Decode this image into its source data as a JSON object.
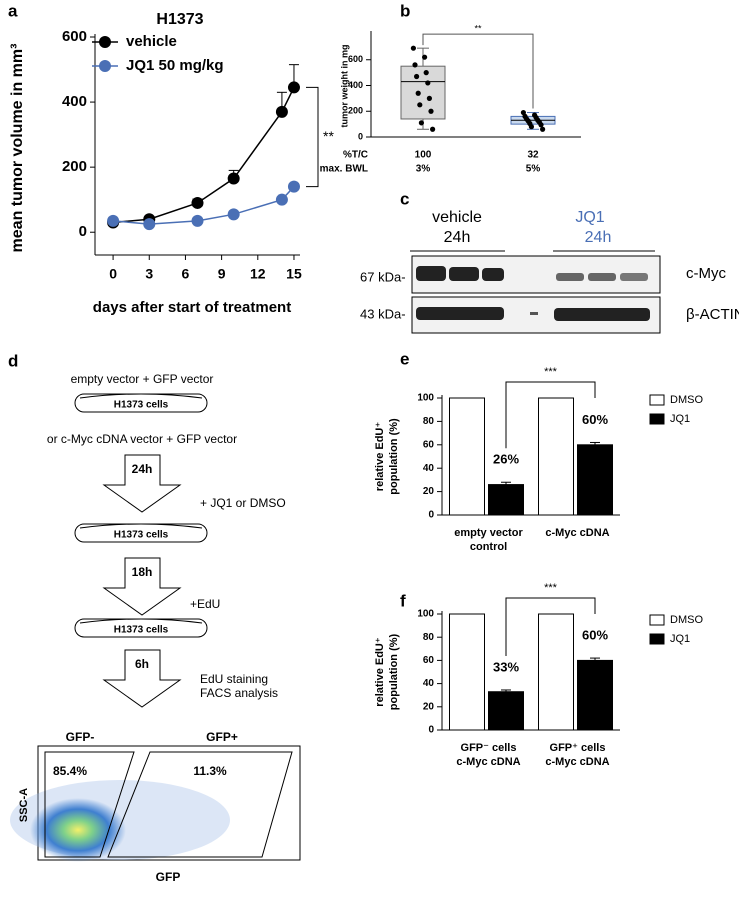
{
  "chart_data": [
    {
      "label": "a",
      "type": "line",
      "title": "H1373",
      "xlabel": "days after start of treatment",
      "ylabel": "mean tumor volume in mm³",
      "xlim": [
        -1.5,
        15.5
      ],
      "xticks": [
        0,
        3,
        6,
        9,
        12,
        15
      ],
      "ylim": [
        -70,
        600
      ],
      "yticks": [
        0,
        200,
        400,
        600
      ],
      "series": [
        {
          "name": "vehicle",
          "color": "#000000",
          "x": [
            0,
            3,
            7,
            10,
            14,
            15
          ],
          "values": [
            30,
            40,
            90,
            165,
            370,
            445
          ],
          "errors": [
            5,
            8,
            12,
            25,
            60,
            70
          ]
        },
        {
          "name": "JQ1 50 mg/kg",
          "color": "#4a6fb5",
          "x": [
            0,
            3,
            7,
            10,
            14,
            15
          ],
          "values": [
            35,
            25,
            35,
            55,
            100,
            140
          ],
          "errors": [
            4,
            4,
            5,
            6,
            8,
            10
          ]
        }
      ],
      "annotation": "**"
    },
    {
      "label": "b",
      "type": "box",
      "ylabel": "tumor weight in mg",
      "ylim": [
        0,
        800
      ],
      "yticks": [
        0,
        200,
        400,
        600
      ],
      "series": [
        {
          "color": "#d9d9d9",
          "stroke": "#666666",
          "min": 60,
          "q1": 140,
          "median": 430,
          "q3": 550,
          "max": 690,
          "points": [
            690,
            620,
            560,
            500,
            470,
            420,
            340,
            300,
            250,
            200,
            110,
            60
          ]
        },
        {
          "color": "#c9d9ee",
          "stroke": "#4a6fb5",
          "min": 60,
          "q1": 100,
          "median": 130,
          "q3": 160,
          "max": 190,
          "points": [
            190,
            170,
            160,
            150,
            140,
            130,
            125,
            115,
            105,
            95,
            80,
            60
          ]
        }
      ],
      "table": {
        "row_labels": [
          "%T/C",
          "max. BWL"
        ],
        "rows": [
          [
            "100",
            "32"
          ],
          [
            "3%",
            "5%"
          ]
        ]
      },
      "annotation": "**"
    },
    {
      "label": "e",
      "type": "bar",
      "ylabel": [
        "relative EdU⁺",
        "population (%)"
      ],
      "ylim": [
        0,
        100
      ],
      "yticks": [
        0,
        20,
        40,
        60,
        80,
        100
      ],
      "categories": [
        [
          "empty vector",
          "control"
        ],
        [
          "c-Myc cDNA"
        ]
      ],
      "series": [
        {
          "name": "DMSO",
          "color": "#ffffff",
          "values": [
            100,
            100
          ]
        },
        {
          "name": "JQ1",
          "color": "#000000",
          "values": [
            26,
            60
          ],
          "errors": [
            2,
            2
          ],
          "value_labels": [
            "26%",
            "60%"
          ]
        }
      ],
      "annotation": "***"
    },
    {
      "label": "f",
      "type": "bar",
      "ylabel": [
        "relative EdU⁺",
        "population (%)"
      ],
      "ylim": [
        0,
        100
      ],
      "yticks": [
        0,
        20,
        40,
        60,
        80,
        100
      ],
      "categories": [
        [
          "GFP⁻ cells",
          "c-Myc cDNA"
        ],
        [
          "GFP⁺ cells",
          "c-Myc cDNA"
        ]
      ],
      "series": [
        {
          "name": "DMSO",
          "color": "#ffffff",
          "values": [
            100,
            100
          ]
        },
        {
          "name": "JQ1",
          "color": "#000000",
          "values": [
            33,
            60
          ],
          "errors": [
            1.5,
            2
          ],
          "value_labels": [
            "33%",
            "60%"
          ]
        }
      ],
      "annotation": "***"
    }
  ],
  "blot": {
    "label": "c",
    "groups": [
      [
        "vehicle",
        "24h"
      ],
      [
        "JQ1",
        "24h"
      ]
    ],
    "markers": [
      "67 kDa-",
      "43 kDa-"
    ],
    "proteins": [
      "c-Myc",
      "β-ACTIN"
    ]
  },
  "diagram": {
    "label": "d",
    "top_note": "empty vector + GFP vector",
    "second_note": "or c-Myc cDNA vector + GFP vector",
    "cells": [
      "H1373 cells",
      "H1373 cells",
      "H1373 cells"
    ],
    "arrows": [
      {
        "time": "24h",
        "note": [
          "+ JQ1 or DMSO"
        ]
      },
      {
        "time": "18h",
        "note": [
          "+EdU"
        ]
      },
      {
        "time": "6h",
        "note": [
          "EdU staining",
          "FACS analysis"
        ]
      }
    ]
  },
  "facs": {
    "gates": [
      "GFP-",
      "GFP+"
    ],
    "percentages": [
      "85.4%",
      "11.3%"
    ],
    "ylabel": "SSC-A",
    "xlabel": "GFP"
  }
}
